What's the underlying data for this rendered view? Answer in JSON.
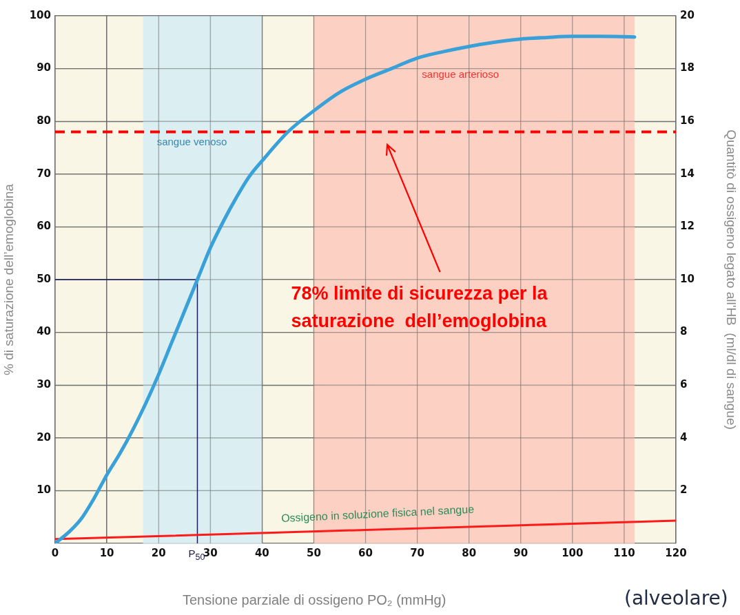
{
  "chart_data": {
    "type": "line",
    "xlabel": "Tensione parziale di ossigeno PO₂ (mmHg)",
    "ylabel": "% di saturazione dell’emoglobina",
    "y2label": "Quantitò di ossigeno legato all'HB  (ml/dl di sangue)",
    "annotations": [
      "(alveolare)"
    ],
    "xlim": [
      0,
      120
    ],
    "xticks": [
      0,
      10,
      20,
      30,
      40,
      50,
      60,
      70,
      80,
      90,
      100,
      110,
      120
    ],
    "ylim": [
      0,
      100
    ],
    "yticks": [
      10,
      20,
      30,
      40,
      50,
      60,
      70,
      80,
      90,
      100
    ],
    "y2lim": [
      0,
      20
    ],
    "y2ticks": [
      2,
      4,
      6,
      8,
      10,
      12,
      14,
      16,
      18,
      20
    ],
    "grid": true,
    "legend": false,
    "marker": "none",
    "series": [
      {
        "color": "#3aa0d8",
        "x": [
          0,
          2.5,
          5,
          7.5,
          10,
          12.5,
          15,
          17.5,
          20,
          22.5,
          25,
          27.5,
          30,
          32.5,
          35,
          37.5,
          40,
          45,
          50,
          55,
          60,
          65,
          70,
          75,
          80,
          85,
          90,
          95,
          100,
          105,
          112
        ],
        "values": [
          0,
          2,
          4.6,
          8.5,
          13,
          17,
          21.5,
          26.5,
          32,
          38,
          44,
          50,
          56,
          61,
          65.5,
          69.5,
          72.5,
          78,
          82,
          85.5,
          88,
          90,
          92,
          93.2,
          94.2,
          95,
          95.6,
          95.9,
          96.1,
          96.1,
          96
        ]
      },
      {
        "name": "Ossigeno in soluzione fisica nel sangue",
        "color": "#ff1a1a",
        "x": [
          0,
          120
        ],
        "values": [
          0.8,
          4.3
        ]
      }
    ],
    "bands": [
      {
        "axis": "x",
        "from": 17,
        "to": 40,
        "label": "sangue venoso",
        "color": "#d5edf5"
      },
      {
        "axis": "x",
        "from": 50,
        "to": 112,
        "label": "sangue arterioso",
        "color": "#fccabd"
      }
    ],
    "ref_lines": [
      {
        "axis": "y",
        "value": 50,
        "color": "#1a1a5a"
      },
      {
        "axis": "x",
        "value": 27.5,
        "label": "P$_{50}$",
        "color": "#1a1a5a"
      },
      {
        "axis": "y",
        "value": 78,
        "color": "#ff0000",
        "line_style": "dashed",
        "label": "78% limite di sicurezza per la\nsaturazione  dell’emoglobina"
      }
    ]
  }
}
